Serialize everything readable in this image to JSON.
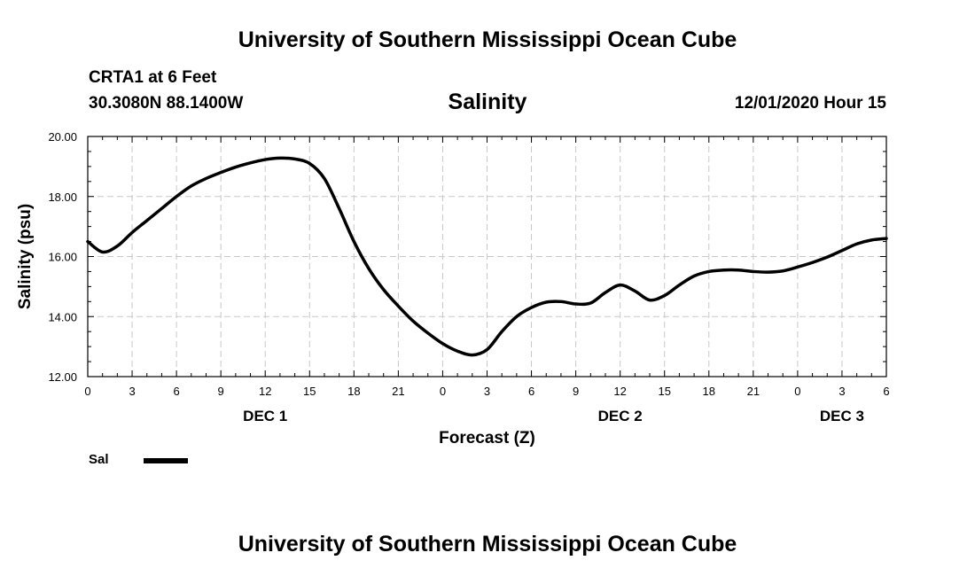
{
  "header": {
    "title_top": "University of Southern Mississippi Ocean Cube",
    "station": "CRTA1 at 6 Feet",
    "coords": "30.3080N 88.1400W",
    "variable": "Salinity",
    "datetime": "12/01/2020 Hour 15",
    "title_bottom": "University of Southern Mississippi Ocean Cube"
  },
  "legend": {
    "label": "Sal",
    "color": "#000000"
  },
  "chart_data": {
    "type": "line",
    "title": "Salinity",
    "xlabel": "Forecast (Z)",
    "ylabel": "Salinity (psu)",
    "xlim": [
      0,
      54
    ],
    "ylim": [
      12,
      20
    ],
    "yticks": [
      "12.00",
      "14.00",
      "16.00",
      "18.00",
      "20.00"
    ],
    "ytick_values": [
      12,
      14,
      16,
      18,
      20
    ],
    "xtick_labels": [
      "0",
      "3",
      "6",
      "9",
      "12",
      "15",
      "18",
      "21",
      "0",
      "3",
      "6",
      "9",
      "12",
      "15",
      "18",
      "21",
      "0",
      "3",
      "6"
    ],
    "day_labels": [
      {
        "label": "DEC 1",
        "x": 12
      },
      {
        "label": "DEC 2",
        "x": 36
      },
      {
        "label": "DEC 3",
        "x": 51
      }
    ],
    "grid": true,
    "series": [
      {
        "name": "Sal",
        "color": "#000000",
        "x": [
          0,
          1,
          2,
          3,
          4,
          5,
          6,
          7,
          8,
          9,
          10,
          11,
          12,
          13,
          14,
          15,
          16,
          17,
          18,
          19,
          20,
          21,
          22,
          23,
          24,
          25,
          26,
          27,
          28,
          29,
          30,
          31,
          32,
          33,
          34,
          35,
          36,
          37,
          38,
          39,
          40,
          41,
          42,
          43,
          44,
          45,
          46,
          47,
          48,
          49,
          50,
          51,
          52,
          53,
          54
        ],
        "values": [
          16.5,
          16.15,
          16.35,
          16.8,
          17.2,
          17.6,
          18.0,
          18.35,
          18.6,
          18.8,
          18.98,
          19.12,
          19.23,
          19.28,
          19.25,
          19.1,
          18.6,
          17.6,
          16.5,
          15.6,
          14.9,
          14.35,
          13.85,
          13.45,
          13.1,
          12.85,
          12.72,
          12.9,
          13.5,
          14.0,
          14.3,
          14.48,
          14.5,
          14.42,
          14.45,
          14.8,
          15.05,
          14.85,
          14.55,
          14.7,
          15.05,
          15.35,
          15.5,
          15.55,
          15.55,
          15.5,
          15.48,
          15.52,
          15.65,
          15.8,
          15.98,
          16.2,
          16.42,
          16.55,
          16.6
        ]
      }
    ]
  }
}
